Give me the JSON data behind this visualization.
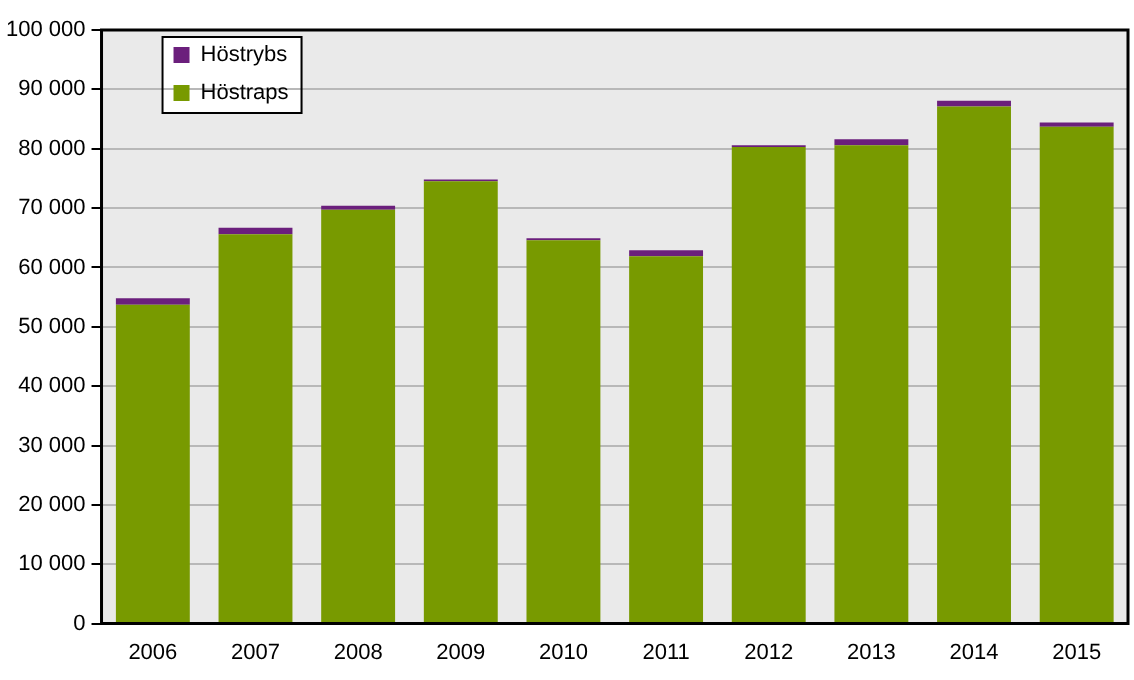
{
  "chart_data": {
    "type": "bar",
    "stacked": true,
    "categories": [
      "2006",
      "2007",
      "2008",
      "2009",
      "2010",
      "2011",
      "2012",
      "2013",
      "2014",
      "2015"
    ],
    "series": [
      {
        "name": "Höstraps",
        "color": "#789a00",
        "values": [
          53700,
          65600,
          69700,
          74500,
          64600,
          61900,
          80300,
          80600,
          87100,
          83700
        ]
      },
      {
        "name": "Höstrybs",
        "color": "#6b1f7c",
        "values": [
          1100,
          1100,
          700,
          300,
          300,
          1000,
          300,
          1000,
          1000,
          700
        ]
      }
    ],
    "ylim": [
      0,
      100000
    ],
    "yticks": [
      {
        "value": 0,
        "label": "0"
      },
      {
        "value": 10000,
        "label": "10 000"
      },
      {
        "value": 20000,
        "label": "20 000"
      },
      {
        "value": 30000,
        "label": "30 000"
      },
      {
        "value": 40000,
        "label": "40 000"
      },
      {
        "value": 50000,
        "label": "50 000"
      },
      {
        "value": 60000,
        "label": "60 000"
      },
      {
        "value": 70000,
        "label": "70 000"
      },
      {
        "value": 80000,
        "label": "80 000"
      },
      {
        "value": 90000,
        "label": "90 000"
      },
      {
        "value": 100000,
        "label": "100 000"
      }
    ],
    "grid": "y",
    "legend": "top left"
  }
}
